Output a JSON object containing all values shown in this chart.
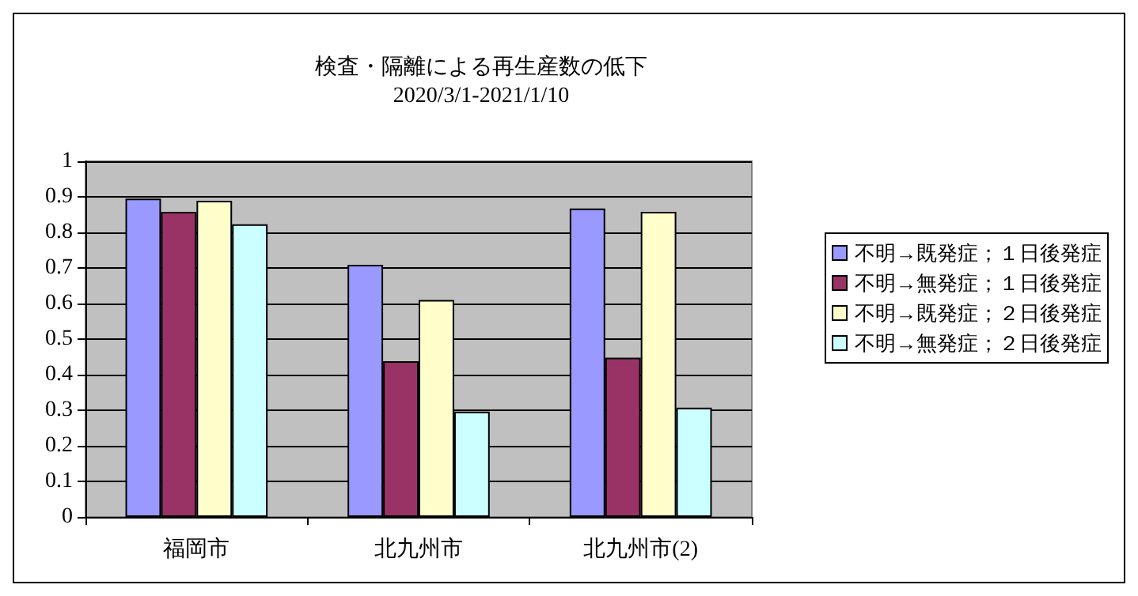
{
  "chart_data": {
    "type": "bar",
    "title": "検査・隔離による再生産数の低下",
    "subtitle": "2020/3/1-2021/1/10",
    "categories": [
      "福岡市",
      "北九州市",
      "北九州市(2)"
    ],
    "series": [
      {
        "name": "不明→既発症；１日後発症",
        "color": "#9999ff",
        "values": [
          0.895,
          0.709,
          0.867
        ]
      },
      {
        "name": "不明→無発症；１日後発症",
        "color": "#993366",
        "values": [
          0.858,
          0.438,
          0.448
        ]
      },
      {
        "name": "不明→既発症；２日後発症",
        "color": "#ffffcc",
        "values": [
          0.889,
          0.61,
          0.858
        ]
      },
      {
        "name": "不明→無発症；２日後発症",
        "color": "#ccffff",
        "values": [
          0.823,
          0.296,
          0.307
        ]
      }
    ],
    "ylim": [
      0,
      1
    ],
    "yticks": [
      0,
      0.1,
      0.2,
      0.3,
      0.4,
      0.5,
      0.6,
      0.7,
      0.8,
      0.9,
      1
    ],
    "grid": "y",
    "legend": "right"
  }
}
